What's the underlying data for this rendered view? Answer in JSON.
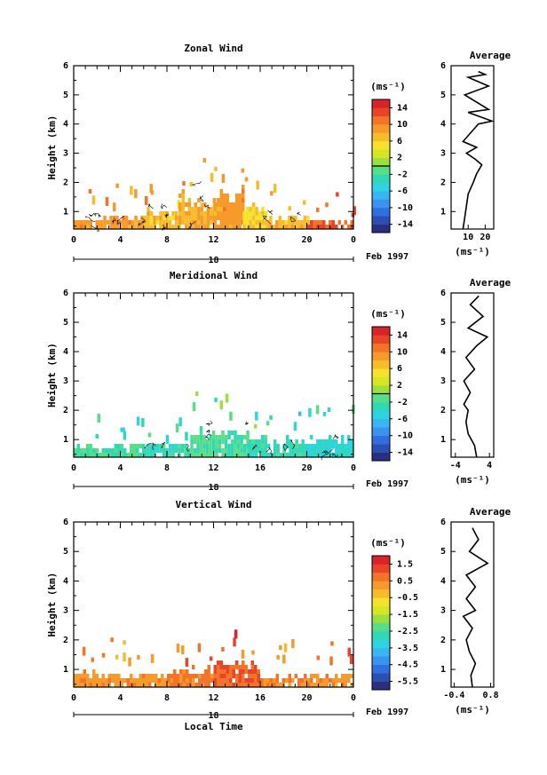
{
  "chart_data": [
    {
      "type": "heatmap",
      "title": "Zonal Wind",
      "ylabel": "Height (km)",
      "xticks": [
        "0",
        "4",
        "8",
        "12",
        "16",
        "20",
        "0"
      ],
      "date_day": "18",
      "date_label": "Feb 1997",
      "xlim": [
        0,
        24
      ],
      "ylim": [
        0.4,
        6
      ],
      "yticks": [
        "1",
        "2",
        "3",
        "4",
        "5",
        "6"
      ],
      "colorbar": {
        "unit": "(ms⁻¹)",
        "ticks": [
          "14",
          "10",
          "6",
          "2",
          "-2",
          "-6",
          "-10",
          "-14"
        ],
        "range": [
          -16,
          16
        ],
        "marker": 0
      },
      "cover": [
        {
          "t0": 0.0,
          "t1": 2.0,
          "h0": 0.4,
          "h1": 0.85,
          "value": 9
        },
        {
          "t0": 2.0,
          "t1": 6.0,
          "h0": 0.4,
          "h1": 1.0,
          "value": 9
        },
        {
          "t0": 6.0,
          "t1": 9.0,
          "h0": 0.4,
          "h1": 1.2,
          "value": 7
        },
        {
          "t0": 9.0,
          "t1": 12.0,
          "h0": 0.4,
          "h1": 1.8,
          "value": 8
        },
        {
          "t0": 12.0,
          "t1": 14.5,
          "h0": 0.4,
          "h1": 2.0,
          "value": 9
        },
        {
          "t0": 14.5,
          "t1": 16.5,
          "h0": 0.4,
          "h1": 1.4,
          "value": 6
        },
        {
          "t0": 16.5,
          "t1": 20.0,
          "h0": 0.4,
          "h1": 1.0,
          "value": 7
        },
        {
          "t0": 20.0,
          "t1": 24.0,
          "h0": 0.4,
          "h1": 0.8,
          "value": 12
        }
      ],
      "average_profile": {
        "title": "Average",
        "xlabel": "(ms⁻¹)",
        "xticks": [
          {
            "v": 10,
            "label": "10"
          },
          {
            "v": 20,
            "label": "20"
          }
        ],
        "xlim": [
          0,
          25
        ],
        "points": [
          [
            7,
            0.4
          ],
          [
            8,
            0.8
          ],
          [
            9,
            1.2
          ],
          [
            10,
            1.6
          ],
          [
            13,
            2.0
          ],
          [
            15,
            2.3
          ],
          [
            18,
            2.6
          ],
          [
            14,
            2.8
          ],
          [
            9,
            3.0
          ],
          [
            15,
            3.2
          ],
          [
            7,
            3.4
          ],
          [
            16,
            4.0
          ],
          [
            24,
            4.1
          ],
          [
            10,
            4.4
          ],
          [
            22,
            4.5
          ],
          [
            8,
            5.0
          ],
          [
            22,
            5.3
          ],
          [
            10,
            5.6
          ],
          [
            20,
            5.7
          ],
          [
            16,
            5.8
          ]
        ]
      }
    },
    {
      "type": "heatmap",
      "title": "Meridional Wind",
      "ylabel": "Height (km)",
      "xticks": [
        "0",
        "4",
        "8",
        "12",
        "16",
        "20",
        "0"
      ],
      "date_day": "18",
      "date_label": "Feb 1997",
      "xlim": [
        0,
        24
      ],
      "ylim": [
        0.4,
        6
      ],
      "yticks": [
        "1",
        "2",
        "3",
        "4",
        "5",
        "6"
      ],
      "colorbar": {
        "unit": "(ms⁻¹)",
        "ticks": [
          "14",
          "10",
          "6",
          "2",
          "-2",
          "-6",
          "-10",
          "-14"
        ],
        "range": [
          -16,
          16
        ],
        "marker": 0
      },
      "cover": [
        {
          "t0": 0.0,
          "t1": 6.0,
          "h0": 0.4,
          "h1": 1.0,
          "value": -2
        },
        {
          "t0": 6.0,
          "t1": 10.0,
          "h0": 0.4,
          "h1": 1.0,
          "value": -3
        },
        {
          "t0": 10.0,
          "t1": 15.0,
          "h0": 0.4,
          "h1": 1.6,
          "value": -2
        },
        {
          "t0": 15.0,
          "t1": 20.0,
          "h0": 0.4,
          "h1": 1.2,
          "value": -3
        },
        {
          "t0": 20.0,
          "t1": 24.0,
          "h0": 0.4,
          "h1": 1.2,
          "value": -4
        }
      ],
      "average_profile": {
        "title": "Average",
        "xlabel": "(ms⁻¹)",
        "xticks": [
          {
            "v": -4,
            "label": "-4"
          },
          {
            "v": 4,
            "label": "4"
          }
        ],
        "xlim": [
          -5,
          5
        ],
        "points": [
          [
            1,
            0.4
          ],
          [
            0.5,
            0.8
          ],
          [
            -1,
            1.2
          ],
          [
            -1.5,
            1.6
          ],
          [
            -1,
            2.0
          ],
          [
            -2,
            2.2
          ],
          [
            -0.5,
            2.6
          ],
          [
            -2,
            3.0
          ],
          [
            0.5,
            3.4
          ],
          [
            -1.5,
            3.8
          ],
          [
            1,
            4.2
          ],
          [
            3.5,
            4.5
          ],
          [
            -1,
            4.8
          ],
          [
            2.5,
            5.2
          ],
          [
            -0.5,
            5.6
          ],
          [
            1.5,
            5.9
          ]
        ]
      }
    },
    {
      "type": "heatmap",
      "title": "Vertical Wind",
      "ylabel": "Height (km)",
      "xlabel": "Local Time",
      "xticks": [
        "0",
        "4",
        "8",
        "12",
        "16",
        "20",
        "0"
      ],
      "date_day": "18",
      "date_label": "Feb 1997",
      "xlim": [
        0,
        24
      ],
      "ylim": [
        0.4,
        6
      ],
      "yticks": [
        "1",
        "2",
        "3",
        "4",
        "5",
        "6"
      ],
      "colorbar": {
        "unit": "(ms⁻¹)",
        "ticks": [
          "1.5",
          "0.5",
          "-0.5",
          "-1.5",
          "-2.5",
          "-3.5",
          "-4.5",
          "-5.5"
        ],
        "range": [
          -6.0,
          2.0
        ],
        "marker": null
      },
      "cover": [
        {
          "t0": 0.0,
          "t1": 4.0,
          "h0": 0.4,
          "h1": 1.1,
          "value": 0.3
        },
        {
          "t0": 4.0,
          "t1": 8.0,
          "h0": 0.4,
          "h1": 1.0,
          "value": 0.3
        },
        {
          "t0": 8.0,
          "t1": 12.0,
          "h0": 0.4,
          "h1": 1.2,
          "value": 0.6
        },
        {
          "t0": 12.0,
          "t1": 16.0,
          "h0": 0.4,
          "h1": 1.4,
          "value": 0.9
        },
        {
          "t0": 16.0,
          "t1": 20.0,
          "h0": 0.4,
          "h1": 1.0,
          "value": 0.5
        },
        {
          "t0": 20.0,
          "t1": 24.0,
          "h0": 0.4,
          "h1": 1.0,
          "value": 0.3
        }
      ],
      "average_profile": {
        "title": "Average",
        "xlabel": "(ms⁻¹)",
        "xticks": [
          {
            "v": -0.4,
            "label": "-0.4"
          },
          {
            "v": 0.8,
            "label": "0.8"
          }
        ],
        "xlim": [
          -0.5,
          0.9
        ],
        "points": [
          [
            0.2,
            0.4
          ],
          [
            0.15,
            0.8
          ],
          [
            0.3,
            1.2
          ],
          [
            0.1,
            1.6
          ],
          [
            0.0,
            2.0
          ],
          [
            0.2,
            2.4
          ],
          [
            -0.1,
            2.8
          ],
          [
            0.3,
            3.0
          ],
          [
            0.0,
            3.4
          ],
          [
            0.3,
            3.8
          ],
          [
            0.0,
            4.2
          ],
          [
            0.7,
            4.6
          ],
          [
            0.1,
            5.0
          ],
          [
            0.4,
            5.4
          ],
          [
            0.2,
            5.8
          ]
        ]
      }
    }
  ]
}
